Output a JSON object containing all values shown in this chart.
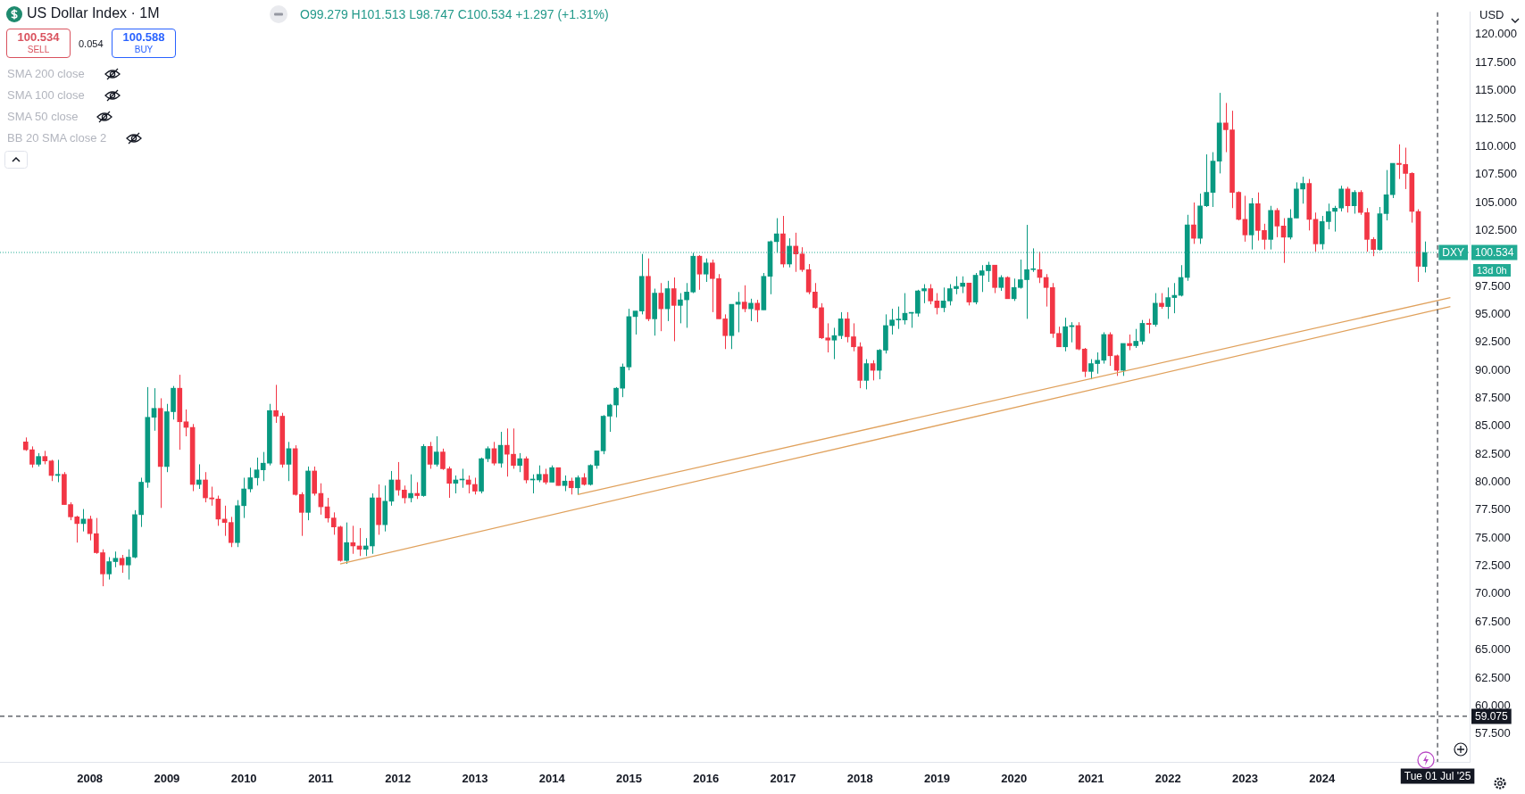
{
  "chart_data": {
    "type": "candlestick",
    "title": "US Dollar Index · 1M",
    "subtitle": "O99.279 H101.513 L98.747 C100.534 +1.297 (+1.31%)",
    "annotations": [
      "100.534",
      "SELL",
      "0.054",
      "100.588",
      "BUY",
      "SMA 200 close",
      "SMA 100 close",
      "SMA 50 close",
      "BB 20 SMA close 2",
      "USD",
      "13d 0h"
    ],
    "xlim": [
      "2006-11",
      "2025-12"
    ],
    "xticks": [
      {
        "value": "2008-01",
        "label": "2008"
      },
      {
        "value": "2009-01",
        "label": "2009"
      },
      {
        "value": "2010-01",
        "label": "2010"
      },
      {
        "value": "2011-01",
        "label": "2011"
      },
      {
        "value": "2012-01",
        "label": "2012"
      },
      {
        "value": "2013-01",
        "label": "2013"
      },
      {
        "value": "2014-01",
        "label": "2014"
      },
      {
        "value": "2015-01",
        "label": "2015"
      },
      {
        "value": "2016-01",
        "label": "2016"
      },
      {
        "value": "2017-01",
        "label": "2017"
      },
      {
        "value": "2018-01",
        "label": "2018"
      },
      {
        "value": "2019-01",
        "label": "2019"
      },
      {
        "value": "2020-01",
        "label": "2020"
      },
      {
        "value": "2021-01",
        "label": "2021"
      },
      {
        "value": "2022-01",
        "label": "2022"
      },
      {
        "value": "2023-01",
        "label": "2023"
      },
      {
        "value": "2024-01",
        "label": "2024"
      }
    ],
    "ylim": [
      55,
      122
    ],
    "yticks": [
      {
        "value": 57.5,
        "label": "57.500"
      },
      {
        "value": 60,
        "label": "60.000"
      },
      {
        "value": 62.5,
        "label": "62.500"
      },
      {
        "value": 65,
        "label": "65.000"
      },
      {
        "value": 67.5,
        "label": "67.500"
      },
      {
        "value": 70,
        "label": "70.000"
      },
      {
        "value": 72.5,
        "label": "72.500"
      },
      {
        "value": 75,
        "label": "75.000"
      },
      {
        "value": 77.5,
        "label": "77.500"
      },
      {
        "value": 80,
        "label": "80.000"
      },
      {
        "value": 82.5,
        "label": "82.500"
      },
      {
        "value": 85,
        "label": "85.000"
      },
      {
        "value": 87.5,
        "label": "87.500"
      },
      {
        "value": 90,
        "label": "90.000"
      },
      {
        "value": 92.5,
        "label": "92.500"
      },
      {
        "value": 95,
        "label": "95.000"
      },
      {
        "value": 97.5,
        "label": "97.500"
      },
      {
        "value": 102.5,
        "label": "102.500"
      },
      {
        "value": 105,
        "label": "105.000"
      },
      {
        "value": 107.5,
        "label": "107.500"
      },
      {
        "value": 110,
        "label": "110.000"
      },
      {
        "value": 112.5,
        "label": "112.500"
      },
      {
        "value": 115,
        "label": "115.000"
      },
      {
        "value": 117.5,
        "label": "117.500"
      },
      {
        "value": 120,
        "label": "120.000"
      }
    ],
    "x": [
      "2007-03",
      "2007-04",
      "2007-05",
      "2007-06",
      "2007-07",
      "2007-08",
      "2007-09",
      "2007-10",
      "2007-11",
      "2007-12",
      "2008-01",
      "2008-02",
      "2008-03",
      "2008-04",
      "2008-05",
      "2008-06",
      "2008-07",
      "2008-08",
      "2008-09",
      "2008-10",
      "2008-11",
      "2008-12",
      "2009-01",
      "2009-02",
      "2009-03",
      "2009-04",
      "2009-05",
      "2009-06",
      "2009-07",
      "2009-08",
      "2009-09",
      "2009-10",
      "2009-11",
      "2009-12",
      "2010-01",
      "2010-02",
      "2010-03",
      "2010-04",
      "2010-05",
      "2010-06",
      "2010-07",
      "2010-08",
      "2010-09",
      "2010-10",
      "2010-11",
      "2010-12",
      "2011-01",
      "2011-02",
      "2011-03",
      "2011-04",
      "2011-05",
      "2011-06",
      "2011-07",
      "2011-08",
      "2011-09",
      "2011-10",
      "2011-11",
      "2011-12",
      "2012-01",
      "2012-02",
      "2012-03",
      "2012-04",
      "2012-05",
      "2012-06",
      "2012-07",
      "2012-08",
      "2012-09",
      "2012-10",
      "2012-11",
      "2012-12",
      "2013-01",
      "2013-02",
      "2013-03",
      "2013-04",
      "2013-05",
      "2013-06",
      "2013-07",
      "2013-08",
      "2013-09",
      "2013-10",
      "2013-11",
      "2013-12",
      "2014-01",
      "2014-02",
      "2014-03",
      "2014-04",
      "2014-05",
      "2014-06",
      "2014-07",
      "2014-08",
      "2014-09",
      "2014-10",
      "2014-11",
      "2014-12",
      "2015-01",
      "2015-02",
      "2015-03",
      "2015-04",
      "2015-05",
      "2015-06",
      "2015-07",
      "2015-08",
      "2015-09",
      "2015-10",
      "2015-11",
      "2015-12",
      "2016-01",
      "2016-02",
      "2016-03",
      "2016-04",
      "2016-05",
      "2016-06",
      "2016-07",
      "2016-08",
      "2016-09",
      "2016-10",
      "2016-11",
      "2016-12",
      "2017-01",
      "2017-02",
      "2017-03",
      "2017-04",
      "2017-05",
      "2017-06",
      "2017-07",
      "2017-08",
      "2017-09",
      "2017-10",
      "2017-11",
      "2017-12",
      "2018-01",
      "2018-02",
      "2018-03",
      "2018-04",
      "2018-05",
      "2018-06",
      "2018-07",
      "2018-08",
      "2018-09",
      "2018-10",
      "2018-11",
      "2018-12",
      "2019-01",
      "2019-02",
      "2019-03",
      "2019-04",
      "2019-05",
      "2019-06",
      "2019-07",
      "2019-08",
      "2019-09",
      "2019-10",
      "2019-11",
      "2019-12",
      "2020-01",
      "2020-02",
      "2020-03",
      "2020-04",
      "2020-05",
      "2020-06",
      "2020-07",
      "2020-08",
      "2020-09",
      "2020-10",
      "2020-11",
      "2020-12",
      "2021-01",
      "2021-02",
      "2021-03",
      "2021-04",
      "2021-05",
      "2021-06",
      "2021-07",
      "2021-08",
      "2021-09",
      "2021-10",
      "2021-11",
      "2021-12",
      "2022-01",
      "2022-02",
      "2022-03",
      "2022-04",
      "2022-05",
      "2022-06",
      "2022-07",
      "2022-08",
      "2022-09",
      "2022-10",
      "2022-11",
      "2022-12",
      "2023-01",
      "2023-02",
      "2023-03",
      "2023-04",
      "2023-05",
      "2023-06",
      "2023-07",
      "2023-08",
      "2023-09",
      "2023-10",
      "2023-11",
      "2023-12",
      "2024-01",
      "2024-02",
      "2024-03",
      "2024-04",
      "2024-05",
      "2024-06",
      "2024-07",
      "2024-08",
      "2024-09",
      "2024-10",
      "2024-11",
      "2024-12",
      "2025-01",
      "2025-02",
      "2025-03",
      "2025-04",
      "2025-05"
    ],
    "ohlc": [
      [
        83.6,
        84.0,
        82.8,
        82.9
      ],
      [
        82.9,
        83.2,
        81.3,
        81.6
      ],
      [
        81.6,
        82.6,
        81.4,
        82.3
      ],
      [
        82.3,
        82.8,
        81.6,
        81.9
      ],
      [
        81.9,
        82.0,
        80.1,
        80.6
      ],
      [
        80.6,
        82.0,
        80.0,
        80.7
      ],
      [
        80.7,
        80.9,
        78.0,
        78.0
      ],
      [
        78.0,
        78.2,
        76.6,
        76.9
      ],
      [
        76.9,
        77.0,
        74.6,
        76.3
      ],
      [
        76.3,
        77.6,
        75.6,
        76.7
      ],
      [
        76.7,
        77.0,
        74.8,
        75.4
      ],
      [
        75.4,
        76.8,
        73.6,
        73.7
      ],
      [
        73.7,
        74.0,
        70.7,
        71.8
      ],
      [
        71.8,
        73.3,
        71.3,
        72.9
      ],
      [
        72.9,
        73.8,
        72.4,
        73.2
      ],
      [
        73.2,
        73.5,
        71.9,
        72.6
      ],
      [
        72.6,
        74.0,
        71.3,
        73.3
      ],
      [
        73.3,
        77.5,
        73.2,
        77.1
      ],
      [
        77.1,
        80.4,
        76.0,
        80.0
      ],
      [
        80.0,
        88.5,
        79.5,
        85.8
      ],
      [
        85.8,
        88.4,
        84.6,
        86.6
      ],
      [
        86.6,
        87.5,
        77.7,
        81.4
      ],
      [
        81.4,
        87.0,
        80.9,
        86.3
      ],
      [
        86.3,
        88.6,
        85.6,
        88.4
      ],
      [
        88.4,
        89.6,
        82.9,
        85.4
      ],
      [
        85.4,
        86.5,
        84.1,
        84.9
      ],
      [
        84.9,
        85.2,
        79.2,
        79.8
      ],
      [
        79.8,
        81.6,
        79.4,
        80.2
      ],
      [
        80.2,
        80.9,
        78.2,
        78.6
      ],
      [
        78.6,
        79.6,
        77.9,
        78.5
      ],
      [
        78.5,
        78.8,
        76.1,
        76.7
      ],
      [
        76.7,
        77.9,
        75.2,
        76.4
      ],
      [
        76.4,
        76.9,
        74.2,
        74.6
      ],
      [
        74.6,
        78.4,
        74.2,
        77.9
      ],
      [
        77.9,
        80.4,
        76.8,
        79.4
      ],
      [
        79.4,
        81.3,
        79.1,
        80.4
      ],
      [
        80.4,
        82.2,
        79.7,
        81.1
      ],
      [
        81.1,
        82.7,
        80.1,
        81.7
      ],
      [
        81.7,
        87.0,
        81.5,
        86.4
      ],
      [
        86.4,
        88.7,
        85.3,
        85.9
      ],
      [
        85.9,
        86.2,
        81.3,
        81.6
      ],
      [
        81.6,
        83.6,
        80.1,
        83.0
      ],
      [
        83.0,
        83.3,
        78.8,
        78.9
      ],
      [
        78.9,
        79.1,
        75.2,
        77.3
      ],
      [
        77.3,
        81.4,
        76.6,
        81.0
      ],
      [
        81.0,
        81.4,
        78.8,
        79.0
      ],
      [
        79.0,
        79.9,
        77.1,
        77.8
      ],
      [
        77.8,
        78.6,
        76.4,
        76.8
      ],
      [
        76.8,
        77.3,
        75.3,
        76.0
      ],
      [
        76.0,
        76.1,
        72.9,
        73.0
      ],
      [
        73.0,
        76.4,
        72.7,
        74.6
      ],
      [
        74.6,
        76.1,
        73.6,
        74.3
      ],
      [
        74.3,
        75.9,
        73.4,
        74.0
      ],
      [
        74.0,
        75.0,
        73.4,
        74.3
      ],
      [
        74.3,
        79.0,
        73.6,
        78.6
      ],
      [
        78.6,
        79.8,
        75.3,
        76.2
      ],
      [
        76.2,
        79.7,
        75.6,
        78.3
      ],
      [
        78.3,
        81.0,
        77.9,
        80.2
      ],
      [
        80.2,
        81.8,
        78.8,
        79.3
      ],
      [
        79.3,
        79.7,
        78.1,
        78.6
      ],
      [
        78.6,
        80.7,
        78.2,
        79.0
      ],
      [
        79.0,
        80.0,
        78.5,
        78.8
      ],
      [
        78.8,
        83.4,
        78.7,
        83.2
      ],
      [
        83.2,
        83.6,
        81.2,
        81.6
      ],
      [
        81.6,
        84.1,
        81.4,
        82.7
      ],
      [
        82.7,
        83.0,
        81.1,
        81.2
      ],
      [
        81.2,
        81.4,
        78.6,
        79.9
      ],
      [
        79.9,
        80.6,
        79.0,
        80.2
      ],
      [
        80.2,
        81.2,
        79.5,
        80.2
      ],
      [
        80.2,
        80.6,
        79.0,
        79.8
      ],
      [
        79.8,
        80.4,
        78.9,
        79.2
      ],
      [
        79.2,
        82.2,
        79.0,
        82.1
      ],
      [
        82.1,
        83.2,
        81.8,
        83.0
      ],
      [
        83.0,
        83.6,
        81.5,
        81.7
      ],
      [
        81.7,
        84.5,
        81.3,
        83.3
      ],
      [
        83.3,
        84.8,
        80.5,
        82.5
      ],
      [
        82.5,
        84.8,
        81.2,
        81.5
      ],
      [
        81.5,
        82.6,
        80.9,
        82.1
      ],
      [
        82.1,
        82.3,
        79.9,
        80.2
      ],
      [
        80.2,
        80.7,
        79.0,
        80.2
      ],
      [
        80.2,
        81.5,
        80.0,
        80.7
      ],
      [
        80.7,
        81.2,
        79.8,
        80.0
      ],
      [
        80.0,
        81.5,
        80.0,
        81.3
      ],
      [
        81.3,
        81.3,
        79.7,
        79.7
      ],
      [
        79.7,
        80.6,
        79.2,
        80.1
      ],
      [
        80.1,
        80.4,
        78.9,
        79.5
      ],
      [
        79.5,
        80.6,
        78.9,
        80.4
      ],
      [
        80.4,
        80.8,
        79.7,
        79.8
      ],
      [
        79.8,
        81.6,
        79.7,
        81.5
      ],
      [
        81.5,
        82.8,
        81.2,
        82.8
      ],
      [
        82.8,
        86.0,
        82.5,
        85.9
      ],
      [
        85.9,
        87.0,
        84.5,
        86.9
      ],
      [
        86.9,
        88.5,
        85.8,
        88.4
      ],
      [
        88.4,
        90.6,
        87.6,
        90.3
      ],
      [
        90.3,
        95.5,
        90.0,
        94.8
      ],
      [
        94.8,
        95.3,
        93.2,
        95.3
      ],
      [
        95.3,
        100.4,
        95.0,
        98.4
      ],
      [
        98.4,
        100.0,
        94.4,
        94.6
      ],
      [
        94.6,
        97.3,
        93.1,
        96.9
      ],
      [
        96.9,
        97.8,
        93.5,
        95.5
      ],
      [
        95.5,
        98.0,
        94.4,
        97.3
      ],
      [
        97.3,
        98.3,
        92.6,
        95.8
      ],
      [
        95.8,
        96.9,
        94.2,
        96.3
      ],
      [
        96.3,
        97.8,
        93.8,
        97.0
      ],
      [
        97.0,
        100.5,
        96.9,
        100.2
      ],
      [
        100.2,
        100.3,
        97.2,
        98.6
      ],
      [
        98.6,
        100.0,
        97.9,
        99.6
      ],
      [
        99.6,
        99.9,
        95.2,
        98.2
      ],
      [
        98.2,
        98.6,
        94.6,
        94.6
      ],
      [
        94.6,
        95.0,
        91.9,
        93.1
      ],
      [
        93.1,
        95.9,
        91.9,
        95.9
      ],
      [
        95.9,
        97.0,
        93.4,
        96.1
      ],
      [
        96.1,
        97.6,
        95.2,
        95.5
      ],
      [
        95.5,
        96.4,
        94.4,
        96.0
      ],
      [
        96.0,
        96.3,
        94.3,
        95.4
      ],
      [
        95.4,
        98.7,
        95.4,
        98.4
      ],
      [
        98.4,
        101.6,
        96.8,
        101.5
      ],
      [
        101.5,
        103.6,
        100.5,
        102.2
      ],
      [
        102.2,
        103.8,
        99.2,
        99.5
      ],
      [
        99.5,
        101.8,
        99.2,
        101.1
      ],
      [
        101.1,
        102.3,
        98.8,
        100.4
      ],
      [
        100.4,
        101.0,
        98.8,
        99.0
      ],
      [
        99.0,
        99.5,
        96.8,
        97.0
      ],
      [
        97.0,
        97.8,
        95.5,
        95.6
      ],
      [
        95.6,
        96.0,
        92.8,
        92.9
      ],
      [
        92.9,
        94.2,
        91.6,
        92.7
      ],
      [
        92.7,
        93.8,
        91.0,
        93.1
      ],
      [
        93.1,
        95.2,
        92.8,
        94.6
      ],
      [
        94.6,
        95.2,
        92.5,
        93.0
      ],
      [
        93.0,
        94.2,
        91.7,
        92.1
      ],
      [
        92.1,
        92.5,
        88.4,
        89.1
      ],
      [
        89.1,
        91.0,
        88.3,
        90.6
      ],
      [
        90.6,
        90.9,
        89.1,
        90.0
      ],
      [
        90.0,
        91.9,
        89.2,
        91.8
      ],
      [
        91.8,
        95.0,
        91.5,
        94.0
      ],
      [
        94.0,
        95.5,
        93.2,
        94.5
      ],
      [
        94.5,
        95.7,
        93.7,
        94.5
      ],
      [
        94.5,
        96.9,
        94.1,
        95.1
      ],
      [
        95.1,
        95.2,
        93.8,
        95.1
      ],
      [
        95.1,
        97.2,
        94.8,
        97.1
      ],
      [
        97.1,
        97.7,
        96.0,
        97.3
      ],
      [
        97.3,
        97.7,
        95.9,
        96.2
      ],
      [
        96.2,
        96.9,
        95.0,
        95.6
      ],
      [
        95.6,
        97.4,
        95.2,
        96.2
      ],
      [
        96.2,
        97.7,
        95.8,
        97.3
      ],
      [
        97.3,
        98.4,
        96.8,
        97.5
      ],
      [
        97.5,
        98.4,
        96.9,
        97.8
      ],
      [
        97.8,
        97.8,
        95.8,
        96.1
      ],
      [
        96.1,
        98.7,
        95.9,
        98.5
      ],
      [
        98.5,
        99.4,
        97.0,
        98.9
      ],
      [
        98.9,
        99.7,
        97.9,
        99.4
      ],
      [
        99.4,
        99.4,
        96.9,
        97.4
      ],
      [
        97.4,
        98.5,
        97.1,
        98.3
      ],
      [
        98.3,
        98.4,
        96.4,
        96.4
      ],
      [
        96.4,
        98.2,
        96.2,
        97.4
      ],
      [
        97.4,
        99.9,
        97.3,
        98.1
      ],
      [
        98.1,
        103.0,
        94.6,
        99.0
      ],
      [
        99.0,
        100.9,
        98.8,
        99.0
      ],
      [
        99.0,
        100.6,
        97.8,
        98.3
      ],
      [
        98.3,
        98.6,
        95.7,
        97.4
      ],
      [
        97.4,
        97.8,
        92.9,
        93.3
      ],
      [
        93.3,
        93.9,
        92.1,
        92.1
      ],
      [
        92.1,
        94.7,
        91.7,
        93.9
      ],
      [
        93.9,
        94.3,
        92.5,
        94.0
      ],
      [
        94.0,
        94.3,
        91.8,
        91.9
      ],
      [
        91.9,
        92.0,
        89.4,
        89.9
      ],
      [
        89.9,
        91.0,
        89.2,
        90.6
      ],
      [
        90.6,
        91.6,
        89.7,
        90.9
      ],
      [
        90.9,
        93.4,
        90.6,
        93.2
      ],
      [
        93.2,
        93.4,
        90.4,
        91.3
      ],
      [
        91.3,
        91.4,
        89.5,
        90.0
      ],
      [
        90.0,
        92.4,
        89.5,
        92.4
      ],
      [
        92.4,
        93.2,
        91.8,
        92.2
      ],
      [
        92.2,
        93.7,
        92.0,
        92.6
      ],
      [
        92.6,
        94.5,
        92.3,
        94.2
      ],
      [
        94.2,
        94.6,
        93.3,
        94.1
      ],
      [
        94.1,
        96.9,
        93.9,
        96.0
      ],
      [
        96.0,
        96.9,
        95.5,
        95.7
      ],
      [
        95.7,
        97.4,
        94.6,
        96.5
      ],
      [
        96.5,
        97.8,
        95.1,
        96.7
      ],
      [
        96.7,
        99.4,
        96.6,
        98.3
      ],
      [
        98.3,
        103.9,
        98.0,
        103.0
      ],
      [
        103.0,
        105.0,
        101.3,
        101.8
      ],
      [
        101.8,
        105.8,
        101.3,
        104.7
      ],
      [
        104.7,
        109.3,
        104.6,
        105.9
      ],
      [
        105.9,
        109.5,
        104.6,
        108.7
      ],
      [
        108.7,
        114.8,
        107.6,
        112.1
      ],
      [
        112.1,
        113.9,
        109.5,
        111.5
      ],
      [
        111.5,
        113.2,
        104.5,
        105.9
      ],
      [
        105.9,
        106.0,
        103.4,
        103.5
      ],
      [
        103.5,
        105.6,
        101.5,
        102.1
      ],
      [
        102.1,
        105.4,
        100.8,
        104.9
      ],
      [
        104.9,
        105.9,
        101.6,
        102.5
      ],
      [
        102.5,
        103.1,
        100.8,
        101.7
      ],
      [
        101.7,
        104.7,
        100.8,
        104.3
      ],
      [
        104.3,
        104.5,
        101.9,
        102.9
      ],
      [
        102.9,
        103.6,
        99.6,
        101.9
      ],
      [
        101.9,
        104.4,
        101.7,
        103.6
      ],
      [
        103.6,
        106.8,
        103.6,
        106.2
      ],
      [
        106.2,
        107.3,
        104.9,
        106.7
      ],
      [
        106.7,
        107.1,
        102.5,
        103.5
      ],
      [
        103.5,
        104.1,
        100.6,
        101.3
      ],
      [
        101.3,
        103.8,
        100.8,
        103.3
      ],
      [
        103.3,
        104.9,
        102.6,
        104.2
      ],
      [
        104.2,
        104.7,
        102.4,
        104.5
      ],
      [
        104.5,
        106.5,
        104.2,
        106.2
      ],
      [
        106.2,
        106.4,
        104.1,
        104.7
      ],
      [
        104.7,
        106.1,
        104.0,
        105.9
      ],
      [
        105.9,
        106.1,
        103.9,
        104.1
      ],
      [
        104.1,
        104.5,
        100.6,
        101.7
      ],
      [
        101.7,
        101.9,
        100.2,
        100.8
      ],
      [
        100.8,
        104.6,
        100.7,
        104.0
      ],
      [
        104.0,
        107.9,
        103.4,
        105.7
      ],
      [
        105.7,
        108.5,
        105.4,
        108.5
      ],
      [
        108.5,
        110.2,
        107.1,
        108.4
      ],
      [
        108.4,
        109.9,
        106.2,
        107.6
      ],
      [
        107.6,
        107.7,
        103.2,
        104.2
      ],
      [
        104.2,
        104.4,
        97.9,
        99.3
      ],
      [
        99.279,
        101.513,
        98.747,
        100.534
      ]
    ],
    "colors": [
      "#f23645",
      "#f23645",
      "#089981",
      "#f23645",
      "#f23645",
      "#089981",
      "#f23645",
      "#f23645",
      "#f23645",
      "#089981",
      "#f23645",
      "#f23645",
      "#f23645",
      "#089981",
      "#089981",
      "#f23645",
      "#089981",
      "#089981",
      "#089981",
      "#089981",
      "#089981",
      "#f23645",
      "#089981",
      "#089981",
      "#f23645",
      "#f23645",
      "#f23645",
      "#089981",
      "#f23645",
      "#f23645",
      "#f23645",
      "#f23645",
      "#f23645",
      "#089981",
      "#089981",
      "#089981",
      "#089981",
      "#089981",
      "#089981",
      "#f23645",
      "#f23645",
      "#089981",
      "#f23645",
      "#f23645",
      "#089981",
      "#f23645",
      "#f23645",
      "#f23645",
      "#f23645",
      "#f23645",
      "#089981",
      "#f23645",
      "#f23645",
      "#089981",
      "#089981",
      "#f23645",
      "#089981",
      "#089981",
      "#f23645",
      "#f23645",
      "#089981",
      "#f23645",
      "#089981",
      "#f23645",
      "#089981",
      "#f23645",
      "#f23645",
      "#089981",
      "#089981",
      "#f23645",
      "#f23645",
      "#089981",
      "#089981",
      "#f23645",
      "#089981",
      "#f23645",
      "#f23645",
      "#089981",
      "#f23645",
      "#089981",
      "#089981",
      "#f23645",
      "#089981",
      "#f23645",
      "#089981",
      "#f23645",
      "#089981",
      "#f23645",
      "#089981",
      "#089981",
      "#089981",
      "#089981",
      "#089981",
      "#089981",
      "#089981",
      "#089981",
      "#089981",
      "#f23645",
      "#089981",
      "#f23645",
      "#089981",
      "#f23645",
      "#089981",
      "#089981",
      "#089981",
      "#f23645",
      "#089981",
      "#f23645",
      "#f23645",
      "#f23645",
      "#089981",
      "#089981",
      "#f23645",
      "#089981",
      "#f23645",
      "#089981",
      "#089981",
      "#089981",
      "#f23645",
      "#089981",
      "#f23645",
      "#f23645",
      "#f23645",
      "#f23645",
      "#f23645",
      "#f23645",
      "#089981",
      "#089981",
      "#f23645",
      "#f23645",
      "#f23645",
      "#089981",
      "#f23645",
      "#089981",
      "#089981",
      "#089981",
      "#089981",
      "#089981",
      "#089981",
      "#089981",
      "#089981",
      "#f23645",
      "#f23645",
      "#089981",
      "#089981",
      "#089981",
      "#089981",
      "#f23645",
      "#089981",
      "#089981",
      "#089981",
      "#f23645",
      "#089981",
      "#f23645",
      "#089981",
      "#089981",
      "#089981",
      "#089981",
      "#f23645",
      "#f23645",
      "#f23645",
      "#f23645",
      "#089981",
      "#089981",
      "#f23645",
      "#f23645",
      "#089981",
      "#089981",
      "#089981",
      "#f23645",
      "#f23645",
      "#089981",
      "#f23645",
      "#089981",
      "#089981",
      "#f23645",
      "#089981",
      "#f23645",
      "#089981",
      "#089981",
      "#089981",
      "#089981",
      "#f23645",
      "#089981",
      "#089981",
      "#089981",
      "#089981",
      "#f23645",
      "#f23645",
      "#f23645",
      "#f23645",
      "#089981",
      "#f23645",
      "#f23645",
      "#089981",
      "#f23645",
      "#f23645",
      "#089981",
      "#089981",
      "#089981",
      "#f23645",
      "#f23645",
      "#089981",
      "#089981",
      "#089981",
      "#089981",
      "#f23645",
      "#089981",
      "#f23645",
      "#f23645",
      "#f23645",
      "#089981",
      "#089981",
      "#089981",
      "#f23645",
      "#f23645",
      "#f23645",
      "#f23645",
      "#089981"
    ],
    "series": [
      {
        "type": "line",
        "color": "#e0a15c",
        "x": [
          "2011-04",
          "2025-09"
        ],
        "values": [
          72.7,
          95.7
        ]
      },
      {
        "type": "line",
        "color": "#e0a15c",
        "x": [
          "2014-05",
          "2025-09"
        ],
        "values": [
          78.9,
          96.5
        ]
      }
    ],
    "ref_lines": [
      {
        "axis": "y",
        "value": 100.534,
        "label": "DXY",
        "color": "#22ab94",
        "line_style": "dotted"
      },
      {
        "axis": "y",
        "value": 59.075,
        "label": "59.075",
        "color": "#131722",
        "line_style": "dashed"
      },
      {
        "axis": "x",
        "value": "2025-07-01",
        "label": "Tue 01 Jul '25",
        "color": "#131722",
        "line_style": "dashed"
      }
    ]
  }
}
